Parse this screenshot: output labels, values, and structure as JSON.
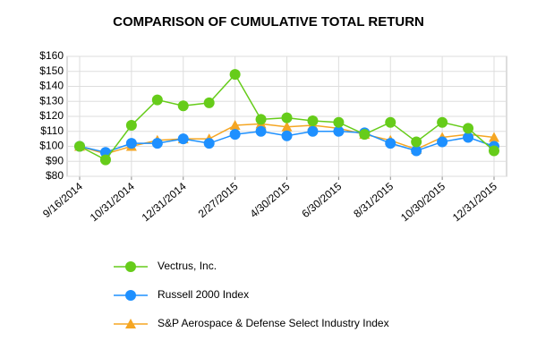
{
  "chart_data": {
    "type": "line",
    "title": "COMPARISON OF CUMULATIVE TOTAL RETURN",
    "categories": [
      "9/16/2014",
      null,
      "10/31/2014",
      null,
      "12/31/2014",
      null,
      "2/27/2015",
      null,
      "4/30/2015",
      null,
      "6/30/2015",
      null,
      "8/31/2015",
      null,
      "10/30/2015",
      null,
      "12/31/2015"
    ],
    "series": [
      {
        "name": "Vectrus, Inc.",
        "color": "#66cc1a",
        "marker": "circle",
        "values": [
          100,
          91,
          114,
          131,
          127,
          129,
          148,
          118,
          119,
          117,
          116,
          108,
          116,
          103,
          116,
          112,
          97
        ]
      },
      {
        "name": "Russell 2000 Index",
        "color": "#1e90ff",
        "marker": "circle",
        "values": [
          100,
          96,
          102,
          102,
          105,
          102,
          108,
          110,
          107,
          110,
          110,
          109,
          102,
          97,
          103,
          106,
          100
        ]
      },
      {
        "name": "S&P Aerospace & Defense Select Industry Index",
        "color": "#f5a623",
        "marker": "triangle",
        "values": [
          100,
          95,
          100,
          104,
          105,
          105,
          114,
          115,
          113,
          114,
          112,
          108,
          104,
          98,
          106,
          108,
          106
        ]
      }
    ],
    "ylim": [
      80,
      160
    ],
    "yticks": [
      {
        "value": 80,
        "label": "$80"
      },
      {
        "value": 90,
        "label": "$90"
      },
      {
        "value": 100,
        "label": "$100"
      },
      {
        "value": 110,
        "label": "$110"
      },
      {
        "value": 120,
        "label": "$120"
      },
      {
        "value": 130,
        "label": "$130"
      },
      {
        "value": 140,
        "label": "$140"
      },
      {
        "value": 150,
        "label": "$150"
      },
      {
        "value": 160,
        "label": "$160"
      }
    ],
    "grid": true
  }
}
